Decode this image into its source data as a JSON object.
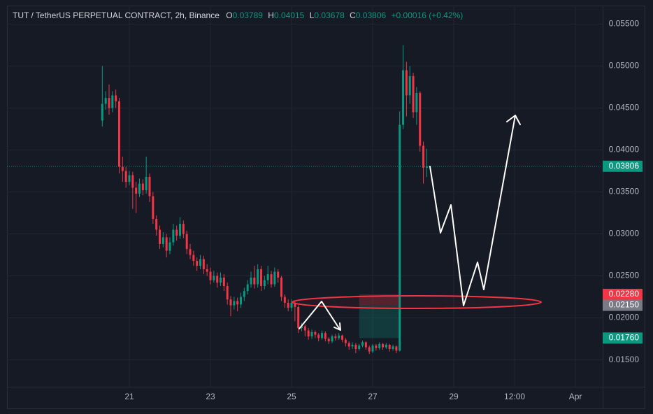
{
  "chart_data": {
    "type": "candlestick",
    "title": "TUT / TetherUS PERPETUAL CONTRACT, 2h, Binance",
    "ohlc_labels": [
      {
        "label": "O",
        "value": "0.03789"
      },
      {
        "label": "H",
        "value": "0.04015"
      },
      {
        "label": "L",
        "value": "0.03678"
      },
      {
        "label": "C",
        "value": "0.03806"
      }
    ],
    "change_label": "+0.00016 (+0.42%)",
    "up_color": "#089981",
    "down_color": "#f23645",
    "grid": true,
    "x": [
      -16,
      -14,
      -12,
      -10,
      -8,
      -6,
      -4,
      -2,
      0,
      2,
      4,
      6,
      8,
      10,
      12,
      14,
      16,
      18,
      20,
      22,
      24,
      26,
      28,
      30,
      32,
      34,
      36,
      38,
      40,
      42,
      44,
      46,
      48,
      50,
      52,
      54,
      56,
      58,
      60,
      62,
      64,
      66,
      68,
      70,
      72,
      74,
      76,
      78,
      80,
      82,
      84,
      86,
      88,
      90,
      92,
      94,
      96,
      98,
      100,
      102,
      104,
      106,
      108,
      110,
      112,
      114,
      116,
      118,
      120,
      122,
      124,
      126,
      128,
      130,
      132,
      134,
      136,
      138,
      140,
      142,
      144,
      146,
      148,
      150,
      152,
      154,
      156,
      158,
      160,
      162,
      164,
      166,
      168,
      170,
      172,
      174,
      176
    ],
    "open": [
      0.0435,
      0.0455,
      0.0462,
      0.045,
      0.0465,
      0.0458,
      0.038,
      0.0375,
      0.0362,
      0.037,
      0.0355,
      0.0348,
      0.036,
      0.0352,
      0.0368,
      0.0345,
      0.0318,
      0.0305,
      0.0288,
      0.0296,
      0.028,
      0.029,
      0.0305,
      0.0298,
      0.0312,
      0.03,
      0.0282,
      0.0275,
      0.0268,
      0.0262,
      0.027,
      0.0258,
      0.0255,
      0.0245,
      0.025,
      0.0242,
      0.0248,
      0.0238,
      0.0222,
      0.0215,
      0.022,
      0.0216,
      0.0225,
      0.0232,
      0.024,
      0.0248,
      0.024,
      0.0258,
      0.0238,
      0.0245,
      0.0252,
      0.024,
      0.0255,
      0.0248,
      0.0225,
      0.0218,
      0.0212,
      0.0218,
      0.0213,
      0.0188,
      0.019,
      0.0185,
      0.0178,
      0.0183,
      0.018,
      0.0176,
      0.0182,
      0.0175,
      0.0172,
      0.0178,
      0.0176,
      0.0179,
      0.0174,
      0.017,
      0.0166,
      0.0168,
      0.0163,
      0.0167,
      0.0171,
      0.0165,
      0.016,
      0.0167,
      0.0164,
      0.0169,
      0.0165,
      0.0168,
      0.0163,
      0.0166,
      0.0161,
      0.043,
      0.0495,
      0.0465,
      0.0488,
      0.0445,
      0.0468,
      0.0405,
      0.03789
    ],
    "high": [
      0.05,
      0.047,
      0.0478,
      0.047,
      0.0472,
      0.0462,
      0.0392,
      0.038,
      0.0375,
      0.0374,
      0.0362,
      0.0366,
      0.0365,
      0.0392,
      0.0372,
      0.035,
      0.0322,
      0.031,
      0.0302,
      0.03,
      0.0296,
      0.0312,
      0.031,
      0.032,
      0.0316,
      0.0304,
      0.0288,
      0.028,
      0.0272,
      0.0275,
      0.0274,
      0.0264,
      0.026,
      0.0256,
      0.0254,
      0.0254,
      0.0252,
      0.0242,
      0.0226,
      0.0225,
      0.0224,
      0.023,
      0.0236,
      0.0245,
      0.0255,
      0.0262,
      0.0264,
      0.0262,
      0.025,
      0.0262,
      0.0256,
      0.026,
      0.0258,
      0.025,
      0.0228,
      0.0222,
      0.0222,
      0.022,
      0.0215,
      0.0194,
      0.0192,
      0.0188,
      0.0186,
      0.0185,
      0.0182,
      0.0185,
      0.0184,
      0.0177,
      0.018,
      0.0181,
      0.0182,
      0.018,
      0.0176,
      0.0172,
      0.0171,
      0.017,
      0.0169,
      0.0173,
      0.0172,
      0.0167,
      0.0169,
      0.0169,
      0.0171,
      0.017,
      0.017,
      0.0169,
      0.0168,
      0.0167,
      0.0446,
      0.0525,
      0.0505,
      0.05,
      0.0492,
      0.0475,
      0.047,
      0.041,
      0.04015
    ],
    "low": [
      0.0428,
      0.0448,
      0.0442,
      0.0445,
      0.045,
      0.0372,
      0.0362,
      0.0355,
      0.0358,
      0.033,
      0.0325,
      0.0344,
      0.0346,
      0.0348,
      0.0338,
      0.0312,
      0.0298,
      0.0282,
      0.0284,
      0.0272,
      0.0276,
      0.0286,
      0.0292,
      0.0294,
      0.0295,
      0.0276,
      0.027,
      0.0262,
      0.0256,
      0.0258,
      0.0252,
      0.025,
      0.024,
      0.0242,
      0.0236,
      0.0238,
      0.0232,
      0.0216,
      0.0202,
      0.021,
      0.0208,
      0.0212,
      0.022,
      0.0228,
      0.0236,
      0.0235,
      0.0236,
      0.0232,
      0.0234,
      0.024,
      0.0236,
      0.0237,
      0.0242,
      0.022,
      0.0212,
      0.0208,
      0.0208,
      0.0196,
      0.0182,
      0.0184,
      0.0178,
      0.0174,
      0.0175,
      0.0176,
      0.0172,
      0.0174,
      0.0172,
      0.0169,
      0.017,
      0.0173,
      0.0174,
      0.0171,
      0.0166,
      0.0162,
      0.0163,
      0.0158,
      0.0161,
      0.0165,
      0.0162,
      0.0157,
      0.0158,
      0.0161,
      0.0162,
      0.0162,
      0.0163,
      0.016,
      0.0161,
      0.0158,
      0.016,
      0.0425,
      0.044,
      0.0455,
      0.0438,
      0.043,
      0.0398,
      0.036,
      0.03678
    ],
    "close": [
      0.0455,
      0.0462,
      0.045,
      0.0465,
      0.0458,
      0.038,
      0.0375,
      0.0362,
      0.037,
      0.0355,
      0.0348,
      0.036,
      0.0352,
      0.0368,
      0.0345,
      0.0318,
      0.0305,
      0.0288,
      0.0296,
      0.028,
      0.029,
      0.0305,
      0.0298,
      0.0312,
      0.03,
      0.0282,
      0.0275,
      0.0268,
      0.0262,
      0.027,
      0.0258,
      0.0255,
      0.0245,
      0.025,
      0.0242,
      0.0248,
      0.0238,
      0.0222,
      0.0215,
      0.022,
      0.0216,
      0.0225,
      0.0232,
      0.024,
      0.0248,
      0.024,
      0.0258,
      0.0238,
      0.0245,
      0.0252,
      0.024,
      0.0255,
      0.0248,
      0.0225,
      0.0218,
      0.0212,
      0.0218,
      0.0213,
      0.0188,
      0.019,
      0.0185,
      0.0178,
      0.0183,
      0.018,
      0.0176,
      0.0182,
      0.0175,
      0.0172,
      0.0178,
      0.0176,
      0.0179,
      0.0174,
      0.017,
      0.0166,
      0.0168,
      0.0163,
      0.0167,
      0.0171,
      0.0165,
      0.016,
      0.0167,
      0.0164,
      0.0169,
      0.0165,
      0.0168,
      0.0163,
      0.0166,
      0.0161,
      0.043,
      0.0495,
      0.0465,
      0.0488,
      0.0445,
      0.0468,
      0.0405,
      0.03789,
      0.03806
    ],
    "xlim": [
      -72.4,
      280.1
    ],
    "xticks": [
      {
        "value": 0,
        "label": "21"
      },
      {
        "value": 48,
        "label": "23"
      },
      {
        "value": 96,
        "label": "25"
      },
      {
        "value": 144,
        "label": "27"
      },
      {
        "value": 192,
        "label": "29"
      },
      {
        "value": 228,
        "label": "12:00"
      },
      {
        "value": 264,
        "label": "Apr"
      }
    ],
    "ylim": [
      0.0118,
      0.0572
    ],
    "yticks": [
      {
        "value": 0.015,
        "label": "0.01500"
      },
      {
        "value": 0.02,
        "label": "0.02000"
      },
      {
        "value": 0.025,
        "label": "0.02500"
      },
      {
        "value": 0.03,
        "label": "0.03000"
      },
      {
        "value": 0.035,
        "label": "0.03500"
      },
      {
        "value": 0.04,
        "label": "0.04000"
      },
      {
        "value": 0.045,
        "label": "0.04500"
      },
      {
        "value": 0.05,
        "label": "0.05000"
      },
      {
        "value": 0.055,
        "label": "0.05500"
      }
    ],
    "last_price": 0.03806,
    "position": {
      "x": [
        136,
        160
      ],
      "stop": {
        "value": 0.0228,
        "label": "0.02280"
      },
      "entry": {
        "value": 0.0215,
        "label": "0.02150"
      },
      "target": {
        "value": 0.0176,
        "label": "0.01760"
      }
    }
  }
}
